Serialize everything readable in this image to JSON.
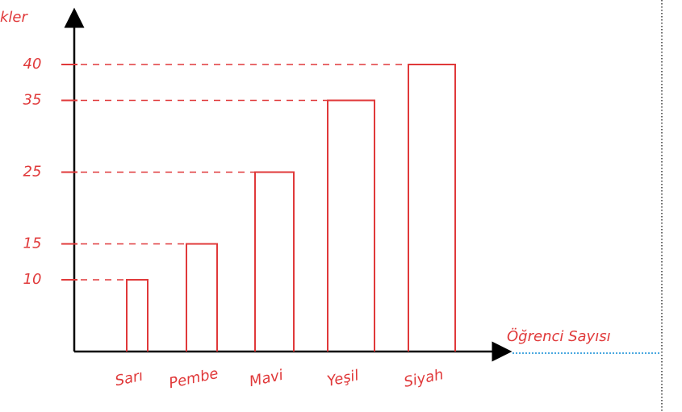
{
  "chart_data": {
    "type": "bar",
    "y_label": "kler",
    "x_label": "Öğrenci Sayısı",
    "categories": [
      "Sarı",
      "Pembe",
      "Mavi",
      "Yeşil",
      "Siyah"
    ],
    "values": [
      10,
      15,
      25,
      35,
      40
    ],
    "color": "#e0393a",
    "ylim": [
      0,
      40
    ],
    "yticks": [
      10,
      15,
      25,
      35,
      40
    ],
    "grid": true
  }
}
